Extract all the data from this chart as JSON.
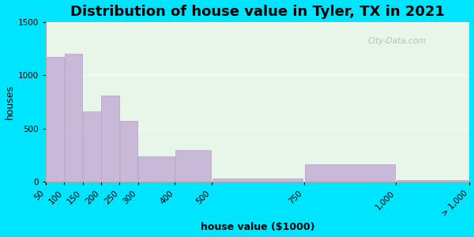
{
  "title": "Distribution of house value in Tyler, TX in 2021",
  "xlabel": "house value ($1000)",
  "ylabel": "houses",
  "bin_edges": [
    50,
    100,
    150,
    200,
    250,
    300,
    400,
    500,
    750,
    1000,
    1200
  ],
  "bar_values": [
    1175,
    1200,
    660,
    810,
    570,
    240,
    300,
    30,
    165,
    20
  ],
  "tick_positions": [
    50,
    100,
    150,
    200,
    250,
    300,
    400,
    500,
    750,
    1000,
    1200
  ],
  "tick_labels": [
    "50",
    "100",
    "150",
    "200",
    "250",
    "300",
    "400",
    "500",
    "750",
    "1,000",
    "> 1,000"
  ],
  "bar_color": "#c9b8d8",
  "bar_edgecolor": "#b0a0c8",
  "ylim": [
    0,
    1500
  ],
  "yticks": [
    0,
    500,
    1000,
    1500
  ],
  "bg_outer": "#00e5ff",
  "bg_plot": "#e8f5e9",
  "watermark": "City-Data.com",
  "title_fontsize": 13,
  "axis_label_fontsize": 9,
  "tick_fontsize": 7.5
}
